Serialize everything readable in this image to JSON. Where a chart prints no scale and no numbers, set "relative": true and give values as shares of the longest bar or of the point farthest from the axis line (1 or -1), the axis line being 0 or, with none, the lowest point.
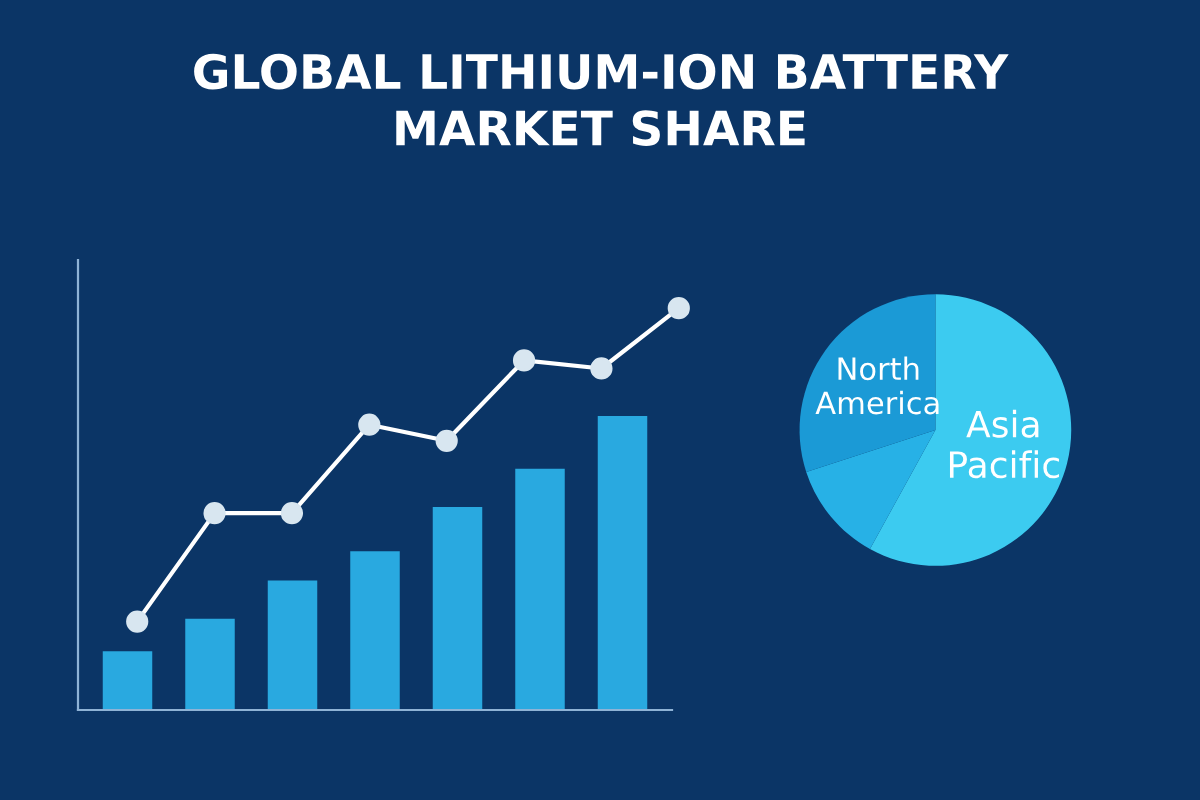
{
  "chart_data": [
    {
      "type": "bar",
      "title": "GLOBAL LITHIUM-ION BATTERY\nMARKET SHARE",
      "categories": [
        null,
        null,
        null,
        null,
        null,
        null,
        null
      ],
      "relative": true,
      "color": "#29a9e0",
      "values": [
        0.2,
        0.31,
        0.44,
        0.54,
        0.69,
        0.82,
        1.0
      ]
    },
    {
      "type": "line",
      "categories": [
        null,
        null,
        null,
        null,
        null,
        null,
        null,
        null
      ],
      "relative": true,
      "color": "#ffffff",
      "marker": "circle",
      "values": [
        0.22,
        0.49,
        0.49,
        0.71,
        0.67,
        0.87,
        0.85,
        1.0
      ]
    },
    {
      "type": "pie",
      "categories": [
        "Asia\nPacific",
        null,
        "North\nAmerica"
      ],
      "values": [
        58,
        12,
        30
      ],
      "colors": [
        "#3ccbf0",
        "#27b1e6",
        "#1b9ad6"
      ]
    }
  ]
}
